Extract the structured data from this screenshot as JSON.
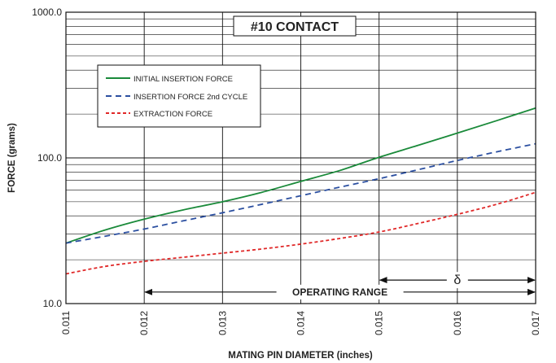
{
  "chart_data": {
    "type": "line",
    "title": "#10 CONTACT",
    "xlabel": "MATING PIN  DIAMETER (inches)",
    "ylabel": "FORCE (grams)",
    "xlim": [
      0.011,
      0.017
    ],
    "ylim": [
      10,
      1000
    ],
    "y_scale": "log",
    "grid": true,
    "legend_position": "top-left",
    "x_ticks": [
      "0.011",
      "0.012",
      "0.013",
      "0.014",
      "0.015",
      "0.016",
      "0.017"
    ],
    "y_ticks": [
      "10.0",
      "100.0",
      "1000.0"
    ],
    "series": [
      {
        "name": "INITIAL INSERTION FORCE",
        "color": "#1a8a3a",
        "dash": "solid",
        "x": [
          0.011,
          0.0115,
          0.012,
          0.0125,
          0.013,
          0.0135,
          0.014,
          0.0145,
          0.015,
          0.0155,
          0.016,
          0.0165,
          0.017
        ],
        "y": [
          26,
          32,
          38,
          44,
          50,
          58,
          69,
          82,
          101,
          122,
          148,
          180,
          220
        ]
      },
      {
        "name": "INSERTION FORCE 2nd CYCLE",
        "color": "#2b4fa0",
        "dash": "dashed",
        "x": [
          0.011,
          0.0115,
          0.012,
          0.0125,
          0.013,
          0.0135,
          0.014,
          0.0145,
          0.015,
          0.0155,
          0.016,
          0.0165,
          0.017
        ],
        "y": [
          26,
          29,
          32.5,
          37,
          42,
          48,
          55,
          63,
          72,
          83,
          96,
          110,
          125
        ]
      },
      {
        "name": "EXTRACTION FORCE",
        "color": "#e02828",
        "dash": "dashed",
        "x": [
          0.011,
          0.0115,
          0.012,
          0.0125,
          0.013,
          0.0135,
          0.014,
          0.0145,
          0.015,
          0.0155,
          0.016,
          0.0165,
          0.017
        ],
        "y": [
          16,
          18,
          19.5,
          20.8,
          22.2,
          23.7,
          25.6,
          28,
          31,
          35.5,
          41,
          48,
          58
        ]
      }
    ],
    "annotations": [
      {
        "text": "OPERATING RANGE",
        "from_x": 0.012,
        "to_x": 0.017,
        "at_y": 12
      },
      {
        "text": "δ",
        "from_x": 0.015,
        "to_x": 0.017,
        "at_y": 14.5
      }
    ]
  }
}
